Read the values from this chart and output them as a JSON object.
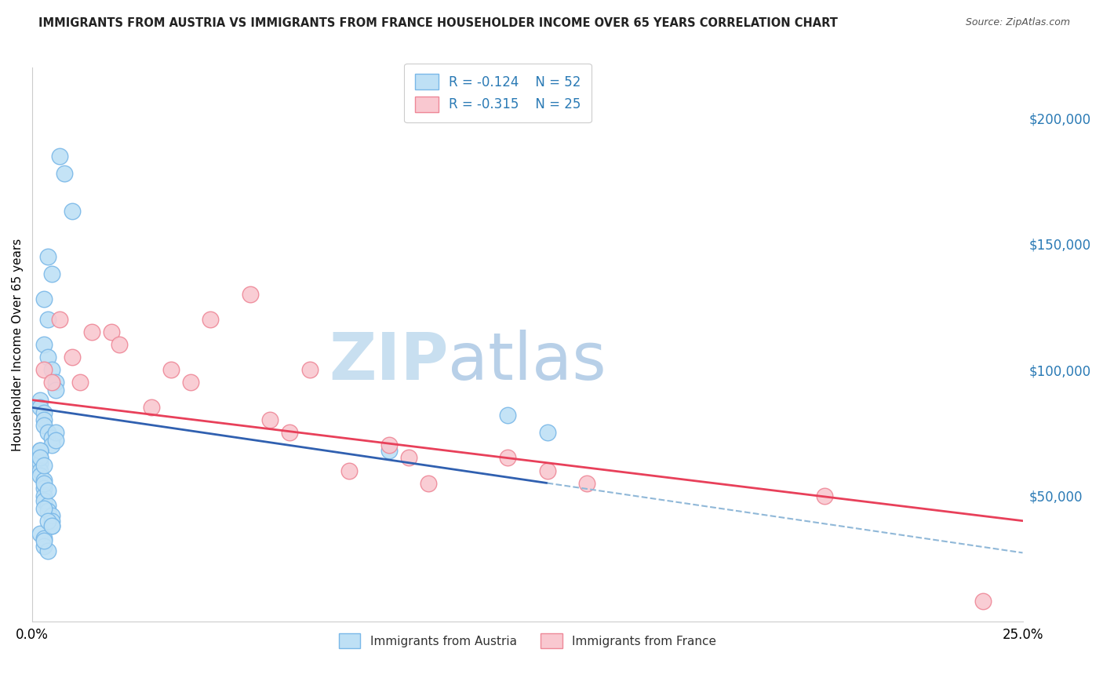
{
  "title": "IMMIGRANTS FROM AUSTRIA VS IMMIGRANTS FROM FRANCE HOUSEHOLDER INCOME OVER 65 YEARS CORRELATION CHART",
  "source": "Source: ZipAtlas.com",
  "ylabel": "Householder Income Over 65 years",
  "xlim": [
    0.0,
    0.25
  ],
  "ylim": [
    0,
    220000
  ],
  "xticks": [
    0.0,
    0.05,
    0.1,
    0.15,
    0.2,
    0.25
  ],
  "xticklabels": [
    "0.0%",
    "",
    "",
    "",
    "",
    "25.0%"
  ],
  "yticks_right": [
    0,
    50000,
    100000,
    150000,
    200000
  ],
  "yticklabels_right": [
    "",
    "$50,000",
    "$100,000",
    "$150,000",
    "$200,000"
  ],
  "austria_color": "#bee0f5",
  "austria_edge": "#7ab8e8",
  "france_color": "#f9c8d0",
  "france_edge": "#ee8898",
  "austria_line_color": "#3060b0",
  "france_line_color": "#e8405a",
  "extend_line_color": "#90b8d8",
  "legend_R_austria": "-0.124",
  "legend_N_austria": "52",
  "legend_R_france": "-0.315",
  "legend_N_france": "25",
  "austria_x": [
    0.007,
    0.008,
    0.01,
    0.004,
    0.005,
    0.003,
    0.004,
    0.003,
    0.004,
    0.005,
    0.006,
    0.006,
    0.002,
    0.002,
    0.003,
    0.003,
    0.003,
    0.004,
    0.005,
    0.005,
    0.002,
    0.002,
    0.002,
    0.002,
    0.002,
    0.003,
    0.003,
    0.003,
    0.003,
    0.004,
    0.004,
    0.005,
    0.005,
    0.005,
    0.006,
    0.002,
    0.003,
    0.003,
    0.004,
    0.002,
    0.002,
    0.003,
    0.003,
    0.004,
    0.003,
    0.004,
    0.005,
    0.003,
    0.006,
    0.12,
    0.13,
    0.09
  ],
  "austria_y": [
    185000,
    178000,
    163000,
    145000,
    138000,
    128000,
    120000,
    110000,
    105000,
    100000,
    95000,
    92000,
    88000,
    85000,
    83000,
    80000,
    78000,
    75000,
    73000,
    70000,
    68000,
    65000,
    63000,
    60000,
    58000,
    56000,
    53000,
    50000,
    48000,
    46000,
    44000,
    42000,
    40000,
    38000,
    75000,
    35000,
    33000,
    30000,
    28000,
    68000,
    65000,
    62000,
    55000,
    52000,
    45000,
    40000,
    38000,
    32000,
    72000,
    82000,
    75000,
    68000
  ],
  "france_x": [
    0.003,
    0.005,
    0.007,
    0.01,
    0.012,
    0.015,
    0.02,
    0.022,
    0.03,
    0.035,
    0.04,
    0.045,
    0.055,
    0.06,
    0.065,
    0.07,
    0.08,
    0.09,
    0.095,
    0.1,
    0.12,
    0.13,
    0.14,
    0.2,
    0.24
  ],
  "france_y": [
    100000,
    95000,
    120000,
    105000,
    95000,
    115000,
    115000,
    110000,
    85000,
    100000,
    95000,
    120000,
    130000,
    80000,
    75000,
    100000,
    60000,
    70000,
    65000,
    55000,
    65000,
    60000,
    55000,
    50000,
    8000
  ],
  "austria_line_x0": 0.0,
  "austria_line_x1": 0.13,
  "austria_line_y0": 85000,
  "austria_line_y1": 55000,
  "france_line_x0": 0.0,
  "france_line_x1": 0.25,
  "france_line_y0": 88000,
  "france_line_y1": 40000
}
